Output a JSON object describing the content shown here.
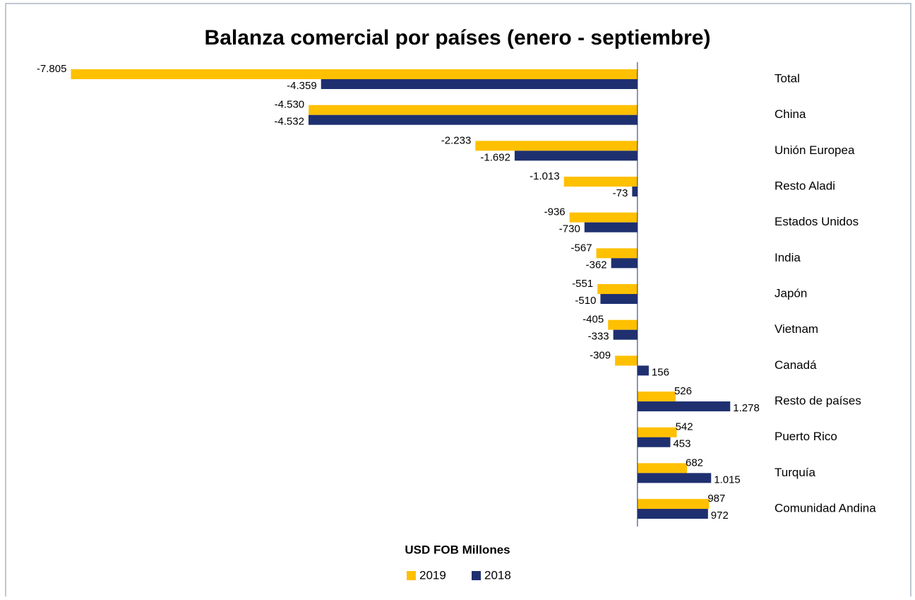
{
  "chart_data": {
    "type": "hbar",
    "title": "Balanza comercial por países (enero - septiembre)",
    "xlabel": "USD FOB Millones",
    "categories": [
      "Total",
      "China",
      "Unión Europea",
      "Resto Aladi",
      "Estados Unidos",
      "India",
      "Japón",
      "Vietnam",
      "Canadá",
      "Resto de países",
      "Puerto Rico",
      "Turquía",
      "Comunidad Andina"
    ],
    "series": [
      {
        "name": "2019",
        "color": "#ffc000",
        "values": [
          -7805,
          -4530,
          -2233,
          -1013,
          -936,
          -567,
          -551,
          -405,
          -309,
          526,
          542,
          682,
          987
        ],
        "value_labels": [
          "-7.805",
          "-4.530",
          "-2.233",
          "-1.013",
          "-936",
          "-567",
          "-551",
          "-405",
          "-309",
          "526",
          "542",
          "682",
          "987"
        ]
      },
      {
        "name": "2018",
        "color": "#1f3070",
        "values": [
          -4359,
          -4532,
          -1692,
          -73,
          -730,
          -362,
          -510,
          -333,
          156,
          1278,
          453,
          1015,
          972
        ],
        "value_labels": [
          "-4.359",
          "-4.532",
          "-1.692",
          "-73",
          "-730",
          "-362",
          "-510",
          "-333",
          "156",
          "1.278",
          "453",
          "1.015",
          "972"
        ]
      }
    ],
    "xlim": [
      -8000,
      2000
    ],
    "legend": "bottom"
  }
}
